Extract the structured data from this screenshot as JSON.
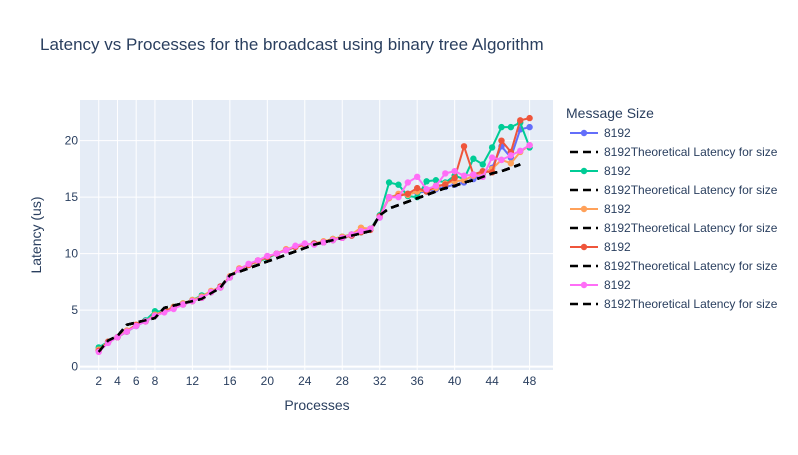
{
  "chart_data": {
    "type": "line",
    "title": "Latency vs Processes for the broadcast using binary tree Algorithm",
    "xlabel": "Processes",
    "ylabel": "Latency (us)",
    "xlim": [
      0,
      50.5
    ],
    "ylim": [
      -0.3,
      23.6
    ],
    "x_ticks": [
      2,
      4,
      6,
      8,
      12,
      16,
      20,
      24,
      28,
      32,
      36,
      40,
      44,
      48
    ],
    "y_ticks": [
      0,
      5,
      10,
      15,
      20
    ],
    "grid": true,
    "legend": {
      "title": "Message Size",
      "placement": "right"
    },
    "series": [
      {
        "name": "8192",
        "color": "#636efa",
        "mode": "lines+markers",
        "x": [
          2,
          3,
          4,
          5,
          6,
          7,
          8,
          9,
          10,
          11,
          12,
          13,
          14,
          15,
          16,
          17,
          18,
          19,
          20,
          21,
          22,
          23,
          24,
          25,
          26,
          27,
          28,
          29,
          30,
          31,
          32,
          33,
          34,
          35,
          36,
          37,
          38,
          39,
          40,
          41,
          42,
          43,
          44,
          45,
          46,
          47,
          48
        ],
        "y": [
          1.5,
          2.2,
          2.6,
          3.1,
          3.6,
          4.0,
          4.5,
          4.9,
          5.2,
          5.5,
          5.8,
          6.1,
          6.6,
          7.1,
          7.9,
          8.6,
          9.0,
          9.3,
          9.7,
          10.0,
          10.3,
          10.6,
          10.8,
          10.9,
          11.0,
          11.2,
          11.4,
          11.6,
          11.9,
          12.2,
          13.2,
          15.0,
          15.2,
          15.3,
          15.4,
          15.5,
          15.7,
          15.9,
          16.1,
          16.3,
          16.6,
          17.0,
          17.6,
          19.5,
          18.5,
          21.0,
          21.2
        ]
      },
      {
        "name": "8192Theoretical Latency for size",
        "color": "#000000",
        "mode": "lines",
        "dash": true,
        "x": [
          2,
          3,
          4,
          5,
          6,
          7,
          8,
          9,
          10,
          11,
          12,
          13,
          14,
          15,
          16,
          17,
          18,
          19,
          20,
          21,
          22,
          23,
          24,
          25,
          26,
          27,
          28,
          29,
          30,
          31,
          32,
          33,
          34,
          35,
          36,
          37,
          38,
          39,
          40,
          41,
          42,
          43,
          44,
          45,
          46,
          47
        ],
        "y": [
          1.3,
          2.3,
          2.7,
          3.7,
          3.9,
          4.1,
          4.3,
          5.2,
          5.4,
          5.6,
          5.8,
          6.0,
          6.5,
          7.0,
          8.1,
          8.4,
          8.7,
          9.0,
          9.3,
          9.6,
          9.9,
          10.2,
          10.5,
          10.8,
          11.0,
          11.2,
          11.4,
          11.6,
          11.8,
          12.0,
          13.4,
          14.0,
          14.3,
          14.6,
          14.9,
          15.2,
          15.5,
          15.8,
          16.0,
          16.3,
          16.5,
          16.8,
          17.1,
          17.3,
          17.6,
          17.9
        ]
      },
      {
        "name": "8192",
        "color": "#00cc96",
        "mode": "lines+markers",
        "x": [
          2,
          3,
          4,
          5,
          6,
          7,
          8,
          9,
          10,
          11,
          12,
          13,
          14,
          15,
          16,
          17,
          18,
          19,
          20,
          21,
          22,
          23,
          24,
          25,
          26,
          27,
          28,
          29,
          30,
          31,
          32,
          33,
          34,
          35,
          36,
          37,
          38,
          39,
          40,
          41,
          42,
          43,
          44,
          45,
          46,
          47,
          48
        ],
        "y": [
          1.7,
          2.2,
          2.6,
          3.1,
          3.6,
          4.1,
          4.9,
          4.9,
          5.3,
          5.6,
          5.9,
          6.3,
          6.6,
          7.0,
          7.9,
          8.6,
          9.0,
          9.3,
          9.6,
          10.0,
          10.3,
          10.6,
          10.8,
          10.9,
          11.0,
          11.3,
          11.5,
          11.7,
          11.9,
          12.2,
          13.4,
          16.3,
          16.1,
          15.1,
          15.0,
          16.4,
          16.5,
          16.3,
          16.9,
          16.6,
          18.4,
          17.9,
          19.4,
          21.2,
          21.2,
          21.6,
          19.4
        ]
      },
      {
        "name": "8192Theoretical Latency for size",
        "color": "#000000",
        "mode": "lines",
        "dash": true,
        "x": [
          2,
          3,
          4,
          5,
          6,
          7,
          8,
          9,
          10,
          11,
          12,
          13,
          14,
          15,
          16,
          17,
          18,
          19,
          20,
          21,
          22,
          23,
          24,
          25,
          26,
          27,
          28,
          29,
          30,
          31,
          32,
          33,
          34,
          35,
          36,
          37,
          38,
          39,
          40,
          41,
          42,
          43,
          44,
          45,
          46,
          47
        ],
        "y": [
          1.3,
          2.3,
          2.7,
          3.7,
          3.9,
          4.1,
          4.3,
          5.2,
          5.4,
          5.6,
          5.8,
          6.0,
          6.5,
          7.0,
          8.1,
          8.4,
          8.7,
          9.0,
          9.3,
          9.6,
          9.9,
          10.2,
          10.5,
          10.8,
          11.0,
          11.2,
          11.4,
          11.6,
          11.8,
          12.0,
          13.4,
          14.0,
          14.3,
          14.6,
          14.9,
          15.2,
          15.5,
          15.8,
          16.0,
          16.3,
          16.5,
          16.8,
          17.1,
          17.3,
          17.6,
          17.9
        ]
      },
      {
        "name": "8192",
        "color": "#ffa15a",
        "mode": "lines+markers",
        "x": [
          2,
          3,
          4,
          5,
          6,
          7,
          8,
          9,
          10,
          11,
          12,
          13,
          14,
          15,
          16,
          17,
          18,
          19,
          20,
          21,
          22,
          23,
          24,
          25,
          26,
          27,
          28,
          29,
          30,
          31,
          32,
          33,
          34,
          35,
          36,
          37,
          38,
          39,
          40,
          41,
          42,
          43,
          44,
          45,
          46,
          47,
          48
        ],
        "y": [
          1.5,
          2.2,
          2.6,
          3.2,
          3.7,
          4.0,
          4.6,
          4.9,
          5.3,
          5.6,
          5.9,
          6.2,
          6.7,
          7.0,
          8.0,
          8.7,
          9.0,
          9.3,
          9.7,
          10.0,
          10.4,
          10.6,
          10.8,
          10.9,
          11.1,
          11.3,
          11.5,
          11.7,
          12.3,
          12.2,
          13.3,
          14.9,
          15.3,
          15.2,
          15.5,
          15.6,
          15.8,
          16.2,
          16.4,
          16.5,
          16.9,
          17.1,
          17.5,
          18.3,
          18.0,
          19.0,
          19.6
        ]
      },
      {
        "name": "8192Theoretical Latency for size",
        "color": "#000000",
        "mode": "lines",
        "dash": true,
        "x": [
          2,
          3,
          4,
          5,
          6,
          7,
          8,
          9,
          10,
          11,
          12,
          13,
          14,
          15,
          16,
          17,
          18,
          19,
          20,
          21,
          22,
          23,
          24,
          25,
          26,
          27,
          28,
          29,
          30,
          31,
          32,
          33,
          34,
          35,
          36,
          37,
          38,
          39,
          40,
          41,
          42,
          43,
          44,
          45,
          46,
          47
        ],
        "y": [
          1.3,
          2.3,
          2.7,
          3.7,
          3.9,
          4.1,
          4.3,
          5.2,
          5.4,
          5.6,
          5.8,
          6.0,
          6.5,
          7.0,
          8.1,
          8.4,
          8.7,
          9.0,
          9.3,
          9.6,
          9.9,
          10.2,
          10.5,
          10.8,
          11.0,
          11.2,
          11.4,
          11.6,
          11.8,
          12.0,
          13.4,
          14.0,
          14.3,
          14.6,
          14.9,
          15.2,
          15.5,
          15.8,
          16.0,
          16.3,
          16.5,
          16.8,
          17.1,
          17.3,
          17.6,
          17.9
        ]
      },
      {
        "name": "8192",
        "color": "#ef553b",
        "mode": "lines+markers",
        "x": [
          2,
          3,
          4,
          5,
          6,
          7,
          8,
          9,
          10,
          11,
          12,
          13,
          14,
          15,
          16,
          17,
          18,
          19,
          20,
          21,
          22,
          23,
          24,
          25,
          26,
          27,
          28,
          29,
          30,
          31,
          32,
          33,
          34,
          35,
          36,
          37,
          38,
          39,
          40,
          41,
          42,
          43,
          44,
          45,
          46,
          47,
          48
        ],
        "y": [
          1.4,
          2.2,
          2.6,
          3.1,
          3.7,
          4.0,
          4.5,
          4.9,
          5.2,
          5.5,
          5.8,
          6.1,
          6.6,
          7.1,
          7.9,
          8.6,
          9.0,
          9.4,
          9.7,
          10.0,
          10.3,
          10.6,
          10.8,
          10.9,
          11.0,
          11.2,
          11.4,
          11.6,
          11.9,
          12.1,
          13.3,
          15.0,
          15.1,
          15.3,
          15.8,
          15.5,
          16.0,
          16.1,
          16.7,
          19.5,
          17.0,
          17.3,
          17.2,
          20.0,
          19.0,
          21.8,
          22.0
        ]
      },
      {
        "name": "8192Theoretical Latency for size",
        "color": "#000000",
        "mode": "lines",
        "dash": true,
        "x": [
          2,
          3,
          4,
          5,
          6,
          7,
          8,
          9,
          10,
          11,
          12,
          13,
          14,
          15,
          16,
          17,
          18,
          19,
          20,
          21,
          22,
          23,
          24,
          25,
          26,
          27,
          28,
          29,
          30,
          31,
          32,
          33,
          34,
          35,
          36,
          37,
          38,
          39,
          40,
          41,
          42,
          43,
          44,
          45,
          46,
          47
        ],
        "y": [
          1.3,
          2.3,
          2.7,
          3.7,
          3.9,
          4.1,
          4.3,
          5.2,
          5.4,
          5.6,
          5.8,
          6.0,
          6.5,
          7.0,
          8.1,
          8.4,
          8.7,
          9.0,
          9.3,
          9.6,
          9.9,
          10.2,
          10.5,
          10.8,
          11.0,
          11.2,
          11.4,
          11.6,
          11.8,
          12.0,
          13.4,
          14.0,
          14.3,
          14.6,
          14.9,
          15.2,
          15.5,
          15.8,
          16.0,
          16.3,
          16.5,
          16.8,
          17.1,
          17.3,
          17.6,
          17.9
        ]
      },
      {
        "name": "8192",
        "color": "#ff6ef7",
        "mode": "lines+markers",
        "x": [
          2,
          3,
          4,
          5,
          6,
          7,
          8,
          9,
          10,
          11,
          12,
          13,
          14,
          15,
          16,
          17,
          18,
          19,
          20,
          21,
          22,
          23,
          24,
          25,
          26,
          27,
          28,
          29,
          30,
          31,
          32,
          33,
          34,
          35,
          36,
          37,
          38,
          39,
          40,
          41,
          42,
          43,
          44,
          45,
          46,
          47,
          48
        ],
        "y": [
          1.3,
          2.1,
          2.6,
          3.1,
          3.6,
          4.0,
          4.5,
          4.8,
          5.1,
          5.5,
          5.8,
          6.1,
          6.6,
          7.0,
          7.9,
          8.6,
          9.1,
          9.4,
          9.8,
          10.0,
          10.3,
          10.7,
          10.9,
          10.8,
          11.0,
          11.2,
          11.4,
          11.7,
          12.0,
          12.2,
          13.2,
          15.0,
          15.0,
          16.3,
          16.8,
          15.7,
          16.0,
          17.1,
          17.3,
          16.9,
          17.0,
          16.8,
          18.5,
          18.3,
          18.7,
          19.1,
          19.6
        ]
      },
      {
        "name": "8192Theoretical Latency for size",
        "color": "#000000",
        "mode": "lines",
        "dash": true,
        "x": [
          2,
          3,
          4,
          5,
          6,
          7,
          8,
          9,
          10,
          11,
          12,
          13,
          14,
          15,
          16,
          17,
          18,
          19,
          20,
          21,
          22,
          23,
          24,
          25,
          26,
          27,
          28,
          29,
          30,
          31,
          32,
          33,
          34,
          35,
          36,
          37,
          38,
          39,
          40,
          41,
          42,
          43,
          44,
          45,
          46,
          47
        ],
        "y": [
          1.3,
          2.3,
          2.7,
          3.7,
          3.9,
          4.1,
          4.3,
          5.2,
          5.4,
          5.6,
          5.8,
          6.0,
          6.5,
          7.0,
          8.1,
          8.4,
          8.7,
          9.0,
          9.3,
          9.6,
          9.9,
          10.2,
          10.5,
          10.8,
          11.0,
          11.2,
          11.4,
          11.6,
          11.8,
          12.0,
          13.4,
          14.0,
          14.3,
          14.6,
          14.9,
          15.2,
          15.5,
          15.8,
          16.0,
          16.3,
          16.5,
          16.8,
          17.1,
          17.3,
          17.6,
          17.9
        ]
      }
    ]
  }
}
